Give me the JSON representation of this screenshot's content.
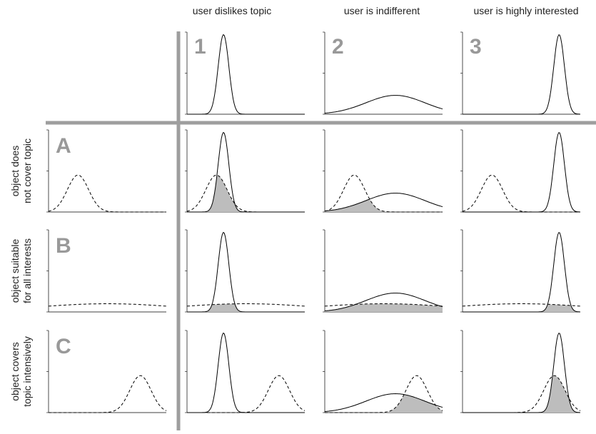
{
  "columns": [
    {
      "label": "1",
      "title": "user dislikes topic"
    },
    {
      "label": "2",
      "title": "user is indifferent"
    },
    {
      "label": "3",
      "title": "user is highly interested"
    }
  ],
  "rows": [
    {
      "label": "A",
      "lines": [
        "object does",
        "not cover topic"
      ]
    },
    {
      "label": "B",
      "lines": [
        "object suitable",
        "for all interests"
      ]
    },
    {
      "label": "C",
      "lines": [
        "object covers",
        "topic intensively"
      ]
    }
  ]
}
